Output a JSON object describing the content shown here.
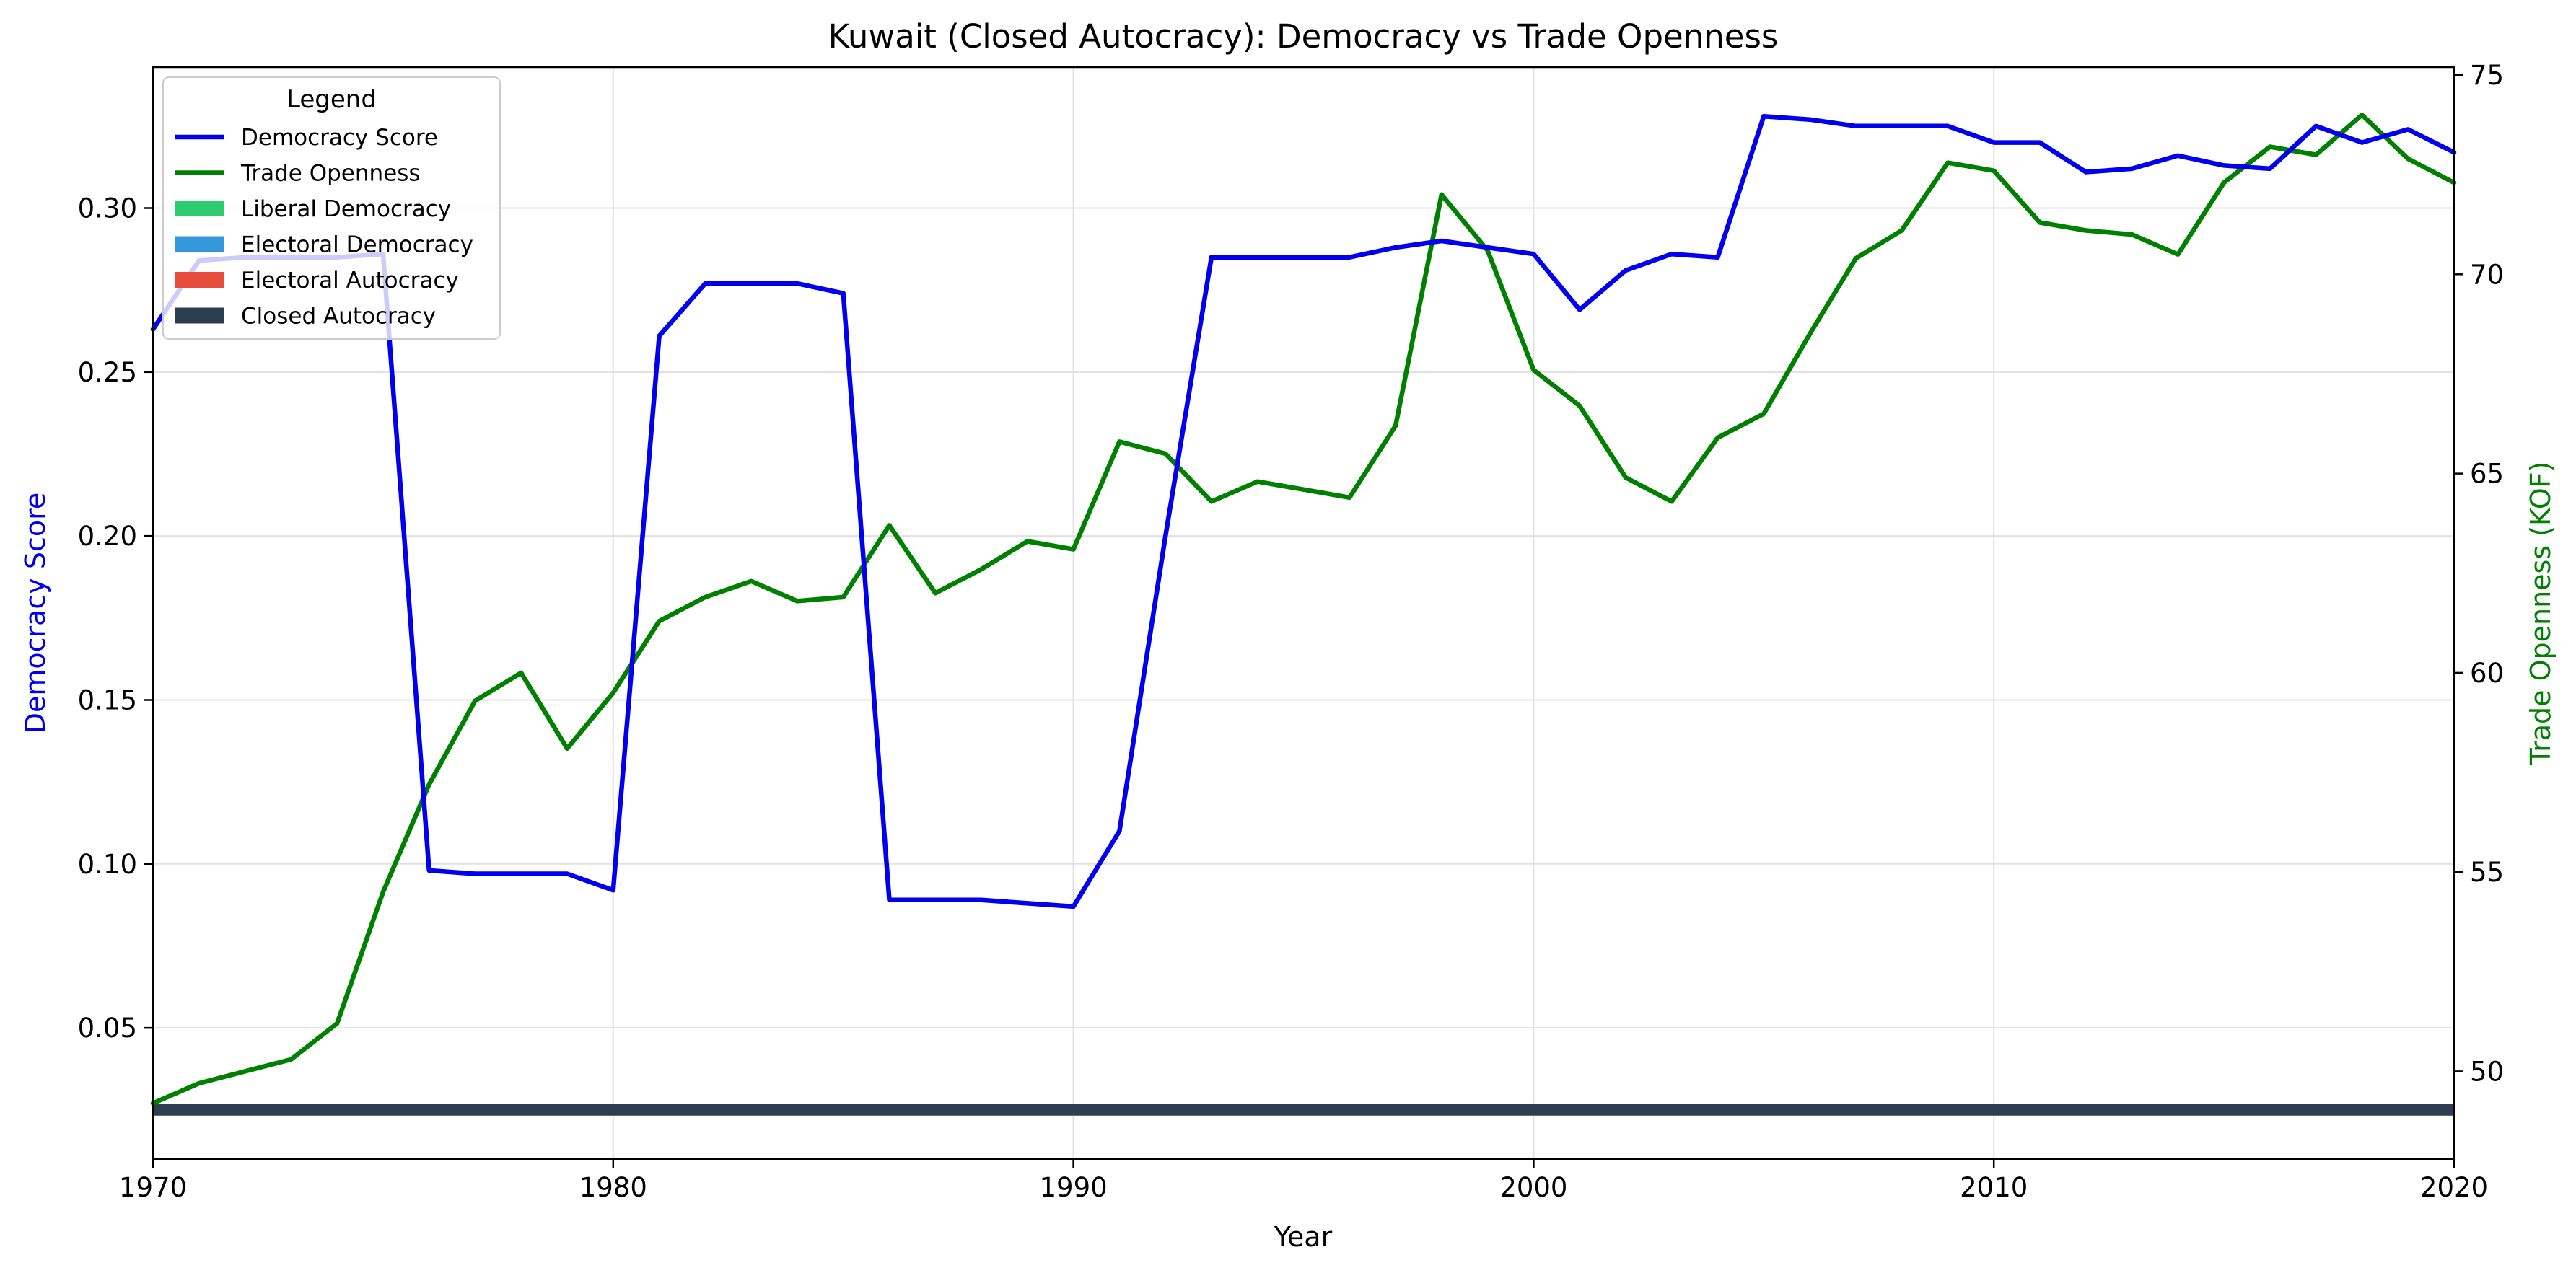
{
  "chart_data": {
    "type": "line",
    "title": "Kuwait (Closed Autocracy): Democracy vs Trade Openness",
    "xlabel": "Year",
    "ylabel": "Democracy Score",
    "y2label": "Trade Openness (KOF)",
    "xlim": [
      1970,
      2020
    ],
    "ylim": [
      0.01,
      0.343
    ],
    "y2lim": [
      47.8,
      75.2
    ],
    "x_ticks": [
      1970,
      1980,
      1990,
      2000,
      2010,
      2020
    ],
    "y_ticks": [
      0.05,
      0.1,
      0.15,
      0.2,
      0.25,
      0.3
    ],
    "y2_ticks": [
      50,
      55,
      60,
      65,
      70,
      75
    ],
    "grid": true,
    "legend": {
      "title": "Legend",
      "position": "top-left",
      "entries": [
        {
          "label": "Democracy Score",
          "kind": "line",
          "color": "#0000ee"
        },
        {
          "label": "Trade Openness",
          "kind": "line",
          "color": "#008000"
        },
        {
          "label": "Liberal Democracy",
          "kind": "patch",
          "color": "#2ecc71"
        },
        {
          "label": "Electoral Democracy",
          "kind": "patch",
          "color": "#3498db"
        },
        {
          "label": "Electoral Autocracy",
          "kind": "patch",
          "color": "#e74c3c"
        },
        {
          "label": "Closed Autocracy",
          "kind": "patch",
          "color": "#2c3e50"
        }
      ]
    },
    "regime_band": {
      "label": "Closed Autocracy",
      "start": 1970,
      "end": 2020,
      "y": 0.025,
      "color": "#2c3e50"
    },
    "x": [
      1970,
      1971,
      1972,
      1973,
      1974,
      1975,
      1976,
      1977,
      1978,
      1979,
      1980,
      1981,
      1982,
      1983,
      1984,
      1985,
      1986,
      1987,
      1988,
      1989,
      1990,
      1991,
      1992,
      1993,
      1994,
      1995,
      1996,
      1997,
      1998,
      1999,
      2000,
      2001,
      2002,
      2003,
      2004,
      2005,
      2006,
      2007,
      2008,
      2009,
      2010,
      2011,
      2012,
      2013,
      2014,
      2015,
      2016,
      2017,
      2018,
      2019,
      2020
    ],
    "series": [
      {
        "name": "Democracy Score",
        "axis": "left",
        "color": "#0000ee",
        "values": [
          0.263,
          0.284,
          0.285,
          0.285,
          0.285,
          0.286,
          0.098,
          0.097,
          0.097,
          0.097,
          0.092,
          0.261,
          0.277,
          0.277,
          0.277,
          0.274,
          0.089,
          0.089,
          0.089,
          0.088,
          0.087,
          0.11,
          0.2,
          0.285,
          0.285,
          0.285,
          0.285,
          0.288,
          0.29,
          0.288,
          0.286,
          0.269,
          0.281,
          0.286,
          0.285,
          0.328,
          0.327,
          0.325,
          0.325,
          0.325,
          0.32,
          0.32,
          0.311,
          0.312,
          0.316,
          0.313,
          0.312,
          0.325,
          0.32,
          0.324,
          0.317
        ]
      },
      {
        "name": "Trade Openness",
        "axis": "right",
        "color": "#008000",
        "values": [
          49.2,
          49.7,
          50.0,
          50.3,
          51.2,
          54.5,
          57.2,
          59.3,
          60.0,
          58.1,
          59.5,
          61.3,
          61.9,
          62.3,
          61.8,
          61.9,
          63.7,
          62.0,
          62.6,
          63.3,
          63.1,
          65.8,
          65.5,
          64.3,
          64.8,
          64.6,
          64.4,
          66.2,
          72.0,
          70.6,
          67.6,
          66.7,
          64.9,
          64.3,
          65.9,
          66.5,
          68.5,
          70.4,
          71.1,
          72.8,
          72.6,
          71.3,
          71.1,
          71.0,
          70.5,
          72.3,
          73.2,
          73.0,
          74.0,
          72.9,
          72.3
        ]
      }
    ]
  }
}
